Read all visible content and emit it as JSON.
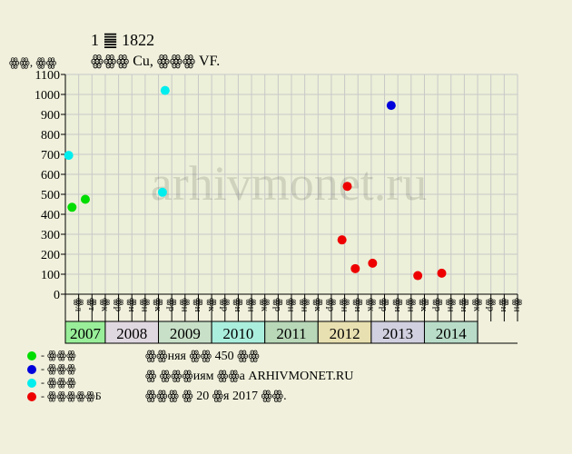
{
  "chart_data": {
    "type": "scatter",
    "title": "1 ䷀ 1822",
    "subtitle": "ꙮꙮꙮ Cu, ꙮꙮꙮ VF.",
    "ylabel": "ꙮꙮ, ꙮꙮ",
    "ylim": [
      0,
      1100
    ],
    "yticks": [
      0,
      100,
      200,
      300,
      400,
      500,
      600,
      700,
      800,
      900,
      1000,
      1100
    ],
    "grid": true,
    "watermark": "arhivmonet.ru",
    "month_labels": [
      "ꙮл",
      "ꙮт",
      "ꙮк",
      "ꙮр",
      "ꙮн",
      "ꙮн",
      "ꙮк",
      "ꙮр",
      "ꙮн",
      "ꙮн",
      "ꙮк",
      "ꙮр",
      "ꙮн",
      "ꙮн",
      "ꙮк",
      "ꙮр",
      "ꙮн",
      "ꙮн",
      "ꙮк",
      "ꙮр",
      "ꙮн",
      "ꙮн",
      "ꙮк",
      "ꙮр",
      "ꙮн",
      "ꙮн",
      "ꙮк",
      "ꙮр",
      "ꙮн",
      "ꙮн",
      "ꙮк",
      "ꙮр",
      "ꙮн",
      "ꙮн"
    ],
    "years": [
      {
        "label": "2007",
        "color": "#99ee99",
        "start": 0,
        "span": 3
      },
      {
        "label": "2008",
        "color": "#e0d8e0",
        "start": 3,
        "span": 4
      },
      {
        "label": "2009",
        "color": "#c8e0c8",
        "start": 7,
        "span": 4
      },
      {
        "label": "2010",
        "color": "#aaeedd",
        "start": 11,
        "span": 4
      },
      {
        "label": "2011",
        "color": "#b8d8b8",
        "start": 15,
        "span": 4
      },
      {
        "label": "2012",
        "color": "#e8e0b0",
        "start": 19,
        "span": 4
      },
      {
        "label": "2013",
        "color": "#d0d0e0",
        "start": 23,
        "span": 4
      },
      {
        "label": "2014",
        "color": "#b8dcc8",
        "start": 27,
        "span": 4
      }
    ],
    "series": [
      {
        "name": "ꙮꙮꙮ",
        "color": "#00dd00",
        "points": [
          {
            "x": 0.5,
            "y": 435
          },
          {
            "x": 1.5,
            "y": 475
          }
        ]
      },
      {
        "name": "ꙮꙮꙮ",
        "color": "#0000dd",
        "points": [
          {
            "x": 24.5,
            "y": 945
          }
        ]
      },
      {
        "name": "ꙮꙮꙮ",
        "color": "#00eeee",
        "points": [
          {
            "x": 0.25,
            "y": 695
          },
          {
            "x": 7.3,
            "y": 510
          },
          {
            "x": 7.5,
            "y": 1020
          }
        ]
      },
      {
        "name": "ꙮꙮꙮꙮꙮБ",
        "color": "#ee0000",
        "points": [
          {
            "x": 20.8,
            "y": 272
          },
          {
            "x": 21.2,
            "y": 540
          },
          {
            "x": 21.8,
            "y": 128
          },
          {
            "x": 23.1,
            "y": 155
          },
          {
            "x": 26.5,
            "y": 93
          },
          {
            "x": 28.3,
            "y": 105
          }
        ]
      }
    ]
  },
  "notes": [
    "ꙮꙮняя ꙮꙮ 450 ꙮꙮ",
    "ꙮ ꙮꙮꙮиям ꙮꙮа ARHIVMONET.RU",
    "ꙮꙮꙮ ꙮ 20 ꙮя 2017 ꙮꙮ."
  ]
}
